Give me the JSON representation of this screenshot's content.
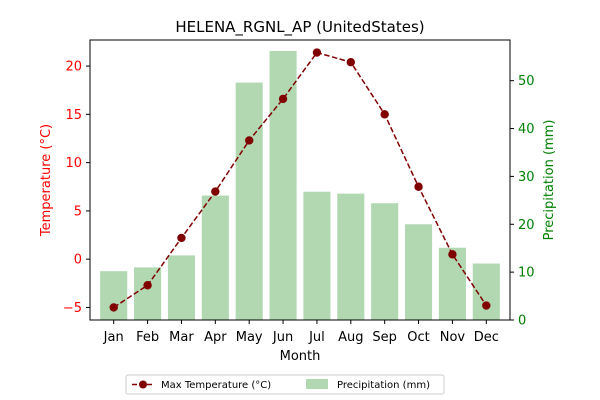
{
  "chart_data": {
    "type": "bar",
    "title": "HELENA_RGNL_AP (UnitedStates)",
    "xlabel": "Month",
    "categories": [
      "Jan",
      "Feb",
      "Mar",
      "Apr",
      "May",
      "Jun",
      "Jul",
      "Aug",
      "Sep",
      "Oct",
      "Nov",
      "Dec"
    ],
    "left_axis": {
      "label": "Temperature (°C)",
      "color": "#ff0000",
      "ylim": [
        -6.3,
        22.7
      ],
      "ticks": [
        -5,
        0,
        5,
        10,
        15,
        20
      ]
    },
    "right_axis": {
      "label": "Precipitation (mm)",
      "color": "#008000",
      "ylim": [
        0,
        58.5
      ],
      "ticks": [
        0,
        10,
        20,
        30,
        40,
        50
      ]
    },
    "series": [
      {
        "name": "Max Temperature (°C)",
        "type": "line",
        "axis": "left",
        "color": "#800000",
        "style": "dashed",
        "marker": "circle",
        "values": [
          -5.0,
          -2.7,
          2.2,
          7.0,
          12.3,
          16.6,
          21.4,
          20.4,
          15.0,
          7.5,
          0.5,
          -4.8
        ]
      },
      {
        "name": "Precipitation (mm)",
        "type": "bar",
        "axis": "right",
        "color": "#b2d8b2",
        "values": [
          10.2,
          11.0,
          13.5,
          26.0,
          49.6,
          56.2,
          26.8,
          26.4,
          24.4,
          20.0,
          15.1,
          11.8
        ]
      }
    ],
    "legend": {
      "position": "bottom-center",
      "entries": [
        "Max Temperature (°C)",
        "Precipitation (mm)"
      ]
    },
    "grid": false
  }
}
